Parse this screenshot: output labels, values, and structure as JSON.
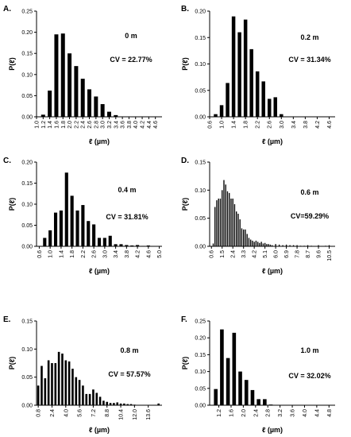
{
  "chart_data": [
    {
      "type": "bar",
      "panel_label": "A.",
      "annotation_distance": "0 m",
      "annotation_cv": "CV = 22.77%",
      "xlabel": "ℓ (µm)",
      "ylabel": "P(ℓ)",
      "xlim": [
        1.0,
        4.8
      ],
      "ylim": [
        0,
        0.25
      ],
      "xticks": [
        "1.0",
        "1.2",
        "1.4",
        "1.6",
        "1.8",
        "2.0",
        "2.2",
        "2.4",
        "2.6",
        "2.8",
        "3.0",
        "3.2",
        "3.4",
        "3.6",
        "3.8",
        "4.0",
        "4.2",
        "4.4",
        "4.6"
      ],
      "xtick_values": [
        1.0,
        1.2,
        1.4,
        1.6,
        1.8,
        2.0,
        2.2,
        2.4,
        2.6,
        2.8,
        3.0,
        3.2,
        3.4,
        3.6,
        3.8,
        4.0,
        4.2,
        4.4,
        4.6
      ],
      "yticks": [
        "0.00",
        "0.05",
        "0.10",
        "0.15",
        "0.20",
        "0.25"
      ],
      "ytick_values": [
        0,
        0.05,
        0.1,
        0.15,
        0.2,
        0.25
      ],
      "x": [
        1.2,
        1.4,
        1.6,
        1.8,
        2.0,
        2.2,
        2.4,
        2.6,
        2.8,
        3.0,
        3.2,
        3.4
      ],
      "values": [
        0.005,
        0.062,
        0.195,
        0.197,
        0.15,
        0.12,
        0.09,
        0.065,
        0.048,
        0.03,
        0.012,
        0.004
      ]
    },
    {
      "type": "bar",
      "panel_label": "B.",
      "annotation_distance": "0.2 m",
      "annotation_cv": "CV = 31.34%",
      "xlabel": "ℓ (µm)",
      "ylabel": "P(ℓ)",
      "xlim": [
        0.6,
        4.8
      ],
      "ylim": [
        0,
        0.2
      ],
      "xticks": [
        "0.6",
        "1.0",
        "1.4",
        "1.8",
        "2.2",
        "2.6",
        "3.0",
        "3.4",
        "3.8",
        "4.2",
        "4.6"
      ],
      "xtick_values": [
        0.6,
        1.0,
        1.4,
        1.8,
        2.2,
        2.6,
        3.0,
        3.4,
        3.8,
        4.2,
        4.6
      ],
      "yticks": [
        "0.00",
        "0.05",
        "0.10",
        "0.15",
        "0.20"
      ],
      "ytick_values": [
        0,
        0.05,
        0.1,
        0.15,
        0.2
      ],
      "x": [
        0.8,
        1.0,
        1.2,
        1.4,
        1.6,
        1.8,
        2.0,
        2.2,
        2.4,
        2.6,
        2.8,
        3.0
      ],
      "values": [
        0.005,
        0.022,
        0.064,
        0.19,
        0.16,
        0.184,
        0.128,
        0.086,
        0.067,
        0.034,
        0.037,
        0.005
      ]
    },
    {
      "type": "bar",
      "panel_label": "C.",
      "annotation_distance": "0.4 m",
      "annotation_cv": "CV = 31.81%",
      "xlabel": "ℓ (µm)",
      "ylabel": "P(ℓ)",
      "xlim": [
        0.5,
        5.1
      ],
      "ylim": [
        0,
        0.2
      ],
      "xticks": [
        "0.6",
        "1.0",
        "1.4",
        "1.8",
        "2.2",
        "2.6",
        "3.0",
        "3.4",
        "3.8",
        "4.2",
        "4.6",
        "5.0"
      ],
      "xtick_values": [
        0.6,
        1.0,
        1.4,
        1.8,
        2.2,
        2.6,
        3.0,
        3.4,
        3.8,
        4.2,
        4.6,
        5.0
      ],
      "yticks": [
        "0.00",
        "0.05",
        "0.10",
        "0.15",
        "0.20"
      ],
      "ytick_values": [
        0,
        0.05,
        0.1,
        0.15,
        0.2
      ],
      "x": [
        0.8,
        1.0,
        1.2,
        1.4,
        1.6,
        1.8,
        2.0,
        2.2,
        2.4,
        2.6,
        2.8,
        3.0,
        3.2,
        3.4,
        3.6,
        3.8,
        4.0,
        4.2,
        4.4,
        4.6
      ],
      "values": [
        0.02,
        0.038,
        0.08,
        0.085,
        0.175,
        0.12,
        0.085,
        0.098,
        0.06,
        0.052,
        0.02,
        0.02,
        0.025,
        0.005,
        0.005,
        0.003,
        0.002,
        0.003,
        0.001,
        0.002
      ]
    },
    {
      "type": "bar",
      "panel_label": "D.",
      "annotation_distance": "0.6 m",
      "annotation_cv": "CV=59.29%",
      "xlabel": "ℓ (µm)",
      "ylabel": "P(ℓ)",
      "xlim": [
        0.45,
        11.0
      ],
      "ylim": [
        0,
        0.15
      ],
      "xticks": [
        "0.6",
        "1.5",
        "2.4",
        "3.3",
        "4.2",
        "5.1",
        "6.0",
        "6.9",
        "7.8",
        "8.7",
        "9.6",
        "10.5"
      ],
      "xtick_values": [
        0.6,
        1.5,
        2.4,
        3.3,
        4.2,
        5.1,
        6.0,
        6.9,
        7.8,
        8.7,
        9.6,
        10.5
      ],
      "yticks": [
        "0.00",
        "0.05",
        "0.10",
        "0.15"
      ],
      "ytick_values": [
        0,
        0.05,
        0.1,
        0.15
      ],
      "x": [
        0.75,
        0.9,
        1.05,
        1.2,
        1.35,
        1.5,
        1.65,
        1.8,
        1.95,
        2.1,
        2.25,
        2.4,
        2.55,
        2.7,
        2.85,
        3.0,
        3.15,
        3.3,
        3.45,
        3.6,
        3.75,
        3.9,
        4.05,
        4.2,
        4.35,
        4.5,
        4.65,
        4.8,
        4.95,
        5.1,
        5.25,
        5.4,
        5.55,
        5.7,
        6.0,
        6.3,
        6.6,
        6.9,
        7.2,
        7.5,
        7.8,
        8.1,
        8.4,
        8.7,
        9.0,
        9.6,
        10.2,
        10.5
      ],
      "values": [
        0.005,
        0.07,
        0.082,
        0.085,
        0.085,
        0.1,
        0.118,
        0.11,
        0.098,
        0.095,
        0.085,
        0.085,
        0.075,
        0.062,
        0.058,
        0.048,
        0.032,
        0.03,
        0.03,
        0.022,
        0.015,
        0.012,
        0.01,
        0.008,
        0.01,
        0.008,
        0.006,
        0.008,
        0.005,
        0.006,
        0.004,
        0.004,
        0.003,
        0.002,
        0.004,
        0.003,
        0.002,
        0.003,
        0.002,
        0.002,
        0.002,
        0.001,
        0.001,
        0.002,
        0.001,
        0.002,
        0.001,
        0.002
      ]
    },
    {
      "type": "bar",
      "panel_label": "E.",
      "annotation_distance": "0.8 m",
      "annotation_cv": "CV = 57.57%",
      "xlabel": "ℓ (µm)",
      "ylabel": "P(ℓ)",
      "xlim": [
        0.6,
        15.2
      ],
      "ylim": [
        0,
        0.15
      ],
      "xticks": [
        "0.8",
        "2.4",
        "4.0",
        "5.6",
        "7.2",
        "8.8",
        "10.4",
        "12.0",
        "13.6"
      ],
      "xtick_values": [
        0.8,
        2.4,
        4.0,
        5.6,
        7.2,
        8.8,
        10.4,
        12.0,
        13.6
      ],
      "yticks": [
        "0.00",
        "0.05",
        "0.10",
        "0.15"
      ],
      "ytick_values": [
        0,
        0.05,
        0.1,
        0.15
      ],
      "x": [
        0.8,
        1.2,
        1.6,
        2.0,
        2.4,
        2.8,
        3.2,
        3.6,
        4.0,
        4.4,
        4.8,
        5.2,
        5.6,
        6.0,
        6.4,
        6.8,
        7.2,
        7.6,
        8.0,
        8.4,
        8.8,
        9.2,
        9.6,
        10.0,
        10.4,
        10.8,
        11.2,
        11.6,
        12.0,
        14.8
      ],
      "values": [
        0.035,
        0.07,
        0.048,
        0.08,
        0.075,
        0.075,
        0.095,
        0.092,
        0.08,
        0.078,
        0.065,
        0.05,
        0.045,
        0.035,
        0.02,
        0.02,
        0.028,
        0.022,
        0.015,
        0.008,
        0.006,
        0.004,
        0.004,
        0.005,
        0.003,
        0.003,
        0.002,
        0.002,
        0.001,
        0.003
      ]
    },
    {
      "type": "bar",
      "panel_label": "F.",
      "annotation_distance": "1.0 m",
      "annotation_cv": "CV = 32.02%",
      "xlabel": "ℓ (µm)",
      "ylabel": "P(ℓ)",
      "xlim": [
        0.9,
        5.0
      ],
      "ylim": [
        0,
        0.25
      ],
      "xticks": [
        "1.2",
        "1.6",
        "2.0",
        "2.4",
        "2.8",
        "3.2",
        "3.6",
        "4.0",
        "4.4",
        "4.8"
      ],
      "xtick_values": [
        1.2,
        1.6,
        2.0,
        2.4,
        2.8,
        3.2,
        3.6,
        4.0,
        4.4,
        4.8
      ],
      "yticks": [
        "0.00",
        "0.05",
        "0.10",
        "0.15",
        "0.20",
        "0.25"
      ],
      "ytick_values": [
        0,
        0.05,
        0.1,
        0.15,
        0.2,
        0.25
      ],
      "x": [
        1.1,
        1.3,
        1.5,
        1.7,
        1.9,
        2.1,
        2.3,
        2.5,
        2.7,
        2.9
      ],
      "values": [
        0.048,
        0.225,
        0.14,
        0.215,
        0.1,
        0.075,
        0.045,
        0.018,
        0.018,
        0.002
      ]
    }
  ]
}
